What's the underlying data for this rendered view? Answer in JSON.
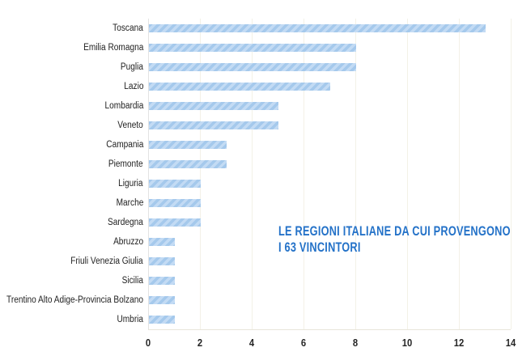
{
  "page": {
    "background": "#ffffff"
  },
  "chart_data": {
    "type": "bar",
    "orientation": "horizontal",
    "title": "",
    "xlabel": "",
    "ylabel": "",
    "categories": [
      "Toscana",
      "Emilia Romagna",
      "Puglia",
      "Lazio",
      "Lombardia",
      "Veneto",
      "Campania",
      "Piemonte",
      "Liguria",
      "Marche",
      "Sardegna",
      "Abruzzo",
      "Friuli Venezia Giulia",
      "Sicilia",
      "Trentino Alto Adige-Provincia Bolzano",
      "Umbria"
    ],
    "values": [
      13,
      8,
      8,
      7,
      5,
      5,
      3,
      3,
      2,
      2,
      2,
      1,
      1,
      1,
      1,
      1
    ],
    "total": 63,
    "xlim": [
      0,
      14
    ],
    "x_ticks": [
      "0",
      "2",
      "4",
      "6",
      "8",
      "10",
      "12",
      "14"
    ],
    "grid": true,
    "legend": false,
    "annotation": {
      "lines": [
        "LE REGIONI ITALIANE DA CUI PROVENGONO",
        "I 63 VINCINTORI"
      ],
      "color": "#2472c8"
    },
    "colors": {
      "bar_stripe_dark": "#a5c9ec",
      "bar_stripe_light": "#c3dbf4",
      "gridline": "#f3f1e7",
      "axis_line": "#e8e5da",
      "label_text": "#1f1f1f",
      "tick_text": "#262626"
    }
  }
}
